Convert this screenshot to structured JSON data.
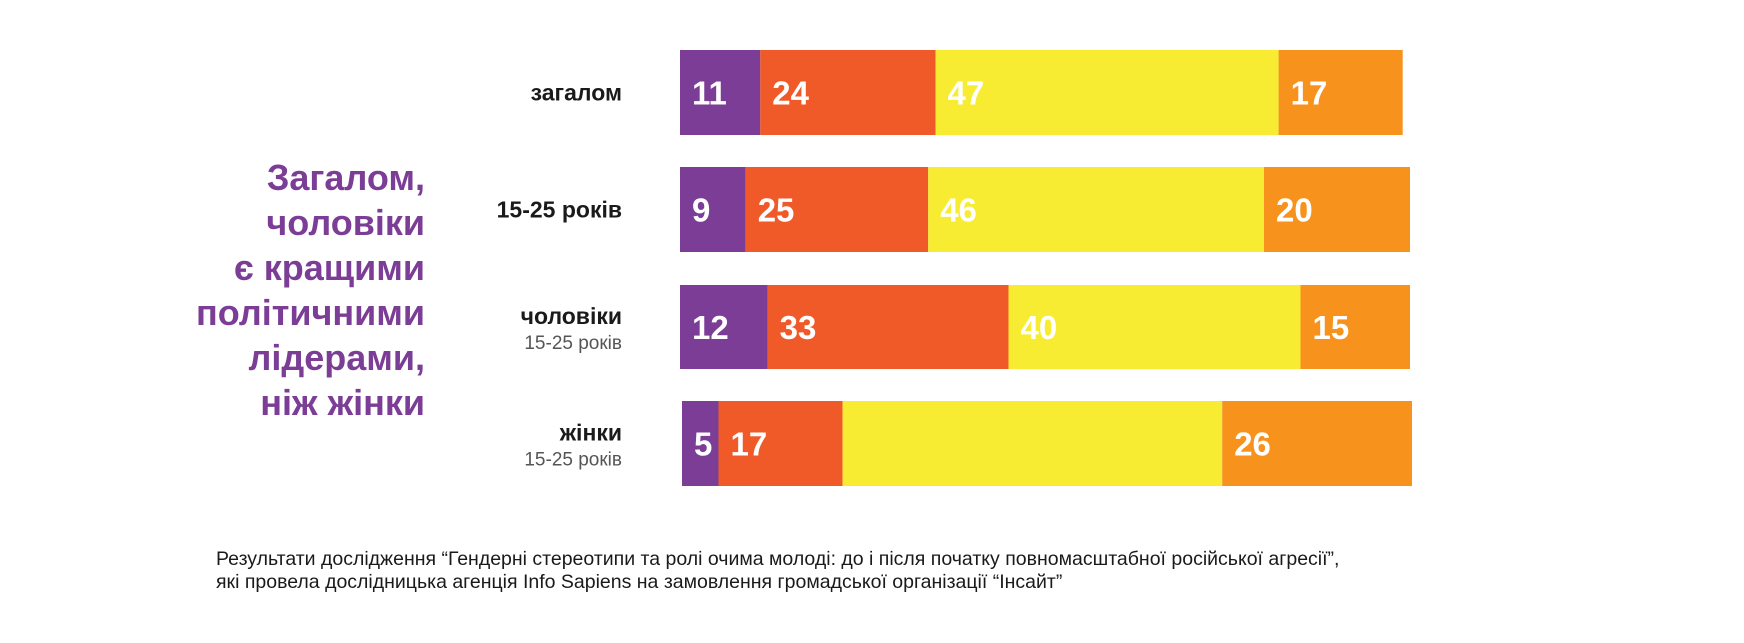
{
  "title_lines": [
    "Загалом,",
    "чоловіки",
    "є кращими",
    "політичними",
    "лідерами,",
    "ніж жінки"
  ],
  "footnote_lines": [
    "Результати дослідження “Гендерні стереотипи та ролі очима молоді: до і після початку повномасштабної російської агресії”,",
    "які провела дослідницька агенція Info Sapiens на замовлення громадської організації “Інсайт”"
  ],
  "colors": {
    "title": "#7b3d96",
    "label": "#1a1a1a",
    "sublabel": "#555555",
    "value": "#ffffff"
  },
  "chart_data": {
    "type": "bar",
    "orientation": "horizontal",
    "stacked": true,
    "categories": [
      {
        "label": "загалом",
        "sublabel": ""
      },
      {
        "label": "15-25 років",
        "sublabel": ""
      },
      {
        "label": "чоловіки",
        "sublabel": "15-25 років"
      },
      {
        "label": "жінки",
        "sublabel": "15-25 років"
      }
    ],
    "series": [
      {
        "color": "#7b3d96",
        "values": [
          11,
          9,
          12,
          5
        ]
      },
      {
        "color": "#f05a28",
        "values": [
          24,
          25,
          33,
          17
        ]
      },
      {
        "color": "#f7ec31",
        "values": [
          47,
          46,
          40,
          52
        ]
      },
      {
        "color": "#f7931d",
        "values": [
          17,
          20,
          15,
          26
        ]
      }
    ],
    "value_labels": [
      [
        "11",
        "24",
        "47",
        "17"
      ],
      [
        "9",
        "25",
        "46",
        "20"
      ],
      [
        "12",
        "33",
        "40",
        "15"
      ],
      [
        "5",
        "17",
        "",
        "26"
      ]
    ],
    "legend": "none",
    "grid": false
  }
}
